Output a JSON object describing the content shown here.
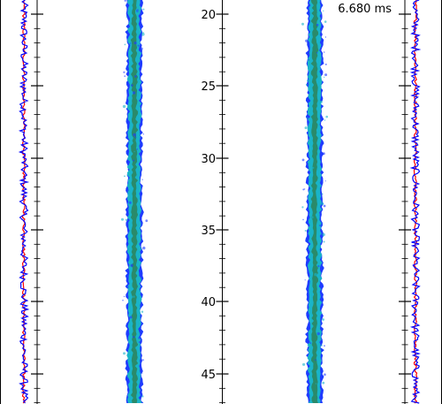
{
  "time_readout": "6.680 ms",
  "axis": {
    "tick_labels": [
      "20",
      "25",
      "30",
      "35",
      "40",
      "45"
    ]
  },
  "colors": {
    "background": "#ffffff",
    "trace_blue": "#0000ff",
    "trace_red": "#ff0000",
    "jet_edge": "#1f3bff",
    "jet_body": "#19b4c8",
    "jet_core": "#2a8a6a",
    "axis_line": "#000000"
  }
}
